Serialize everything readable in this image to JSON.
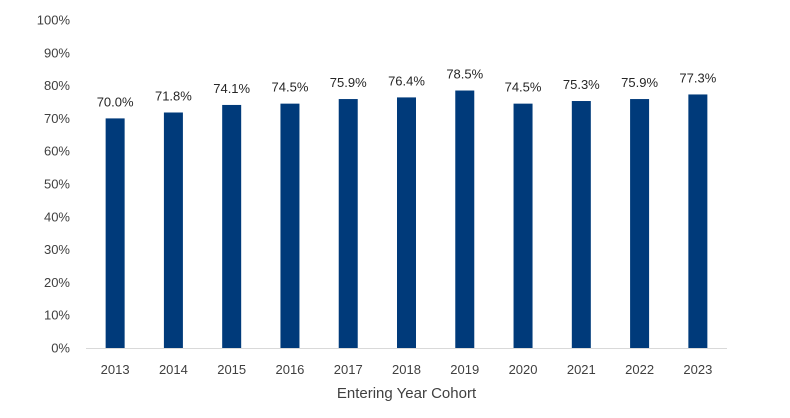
{
  "chart_data": {
    "type": "bar",
    "title": "",
    "xlabel": "Entering Year Cohort",
    "ylabel": "",
    "categories": [
      "2013",
      "2014",
      "2015",
      "2016",
      "2017",
      "2018",
      "2019",
      "2020",
      "2021",
      "2022",
      "2023"
    ],
    "values": [
      70.0,
      71.8,
      74.1,
      74.5,
      75.9,
      76.4,
      78.5,
      74.5,
      75.3,
      75.9,
      77.3
    ],
    "data_labels": [
      "70.0%",
      "71.8%",
      "74.1%",
      "74.5%",
      "75.9%",
      "76.4%",
      "78.5%",
      "74.5%",
      "75.3%",
      "75.9%",
      "77.3%"
    ],
    "ylim": [
      0,
      100
    ],
    "yticks": [
      0,
      10,
      20,
      30,
      40,
      50,
      60,
      70,
      80,
      90,
      100
    ],
    "ytick_labels": [
      "0%",
      "10%",
      "20%",
      "30%",
      "40%",
      "50%",
      "60%",
      "70%",
      "80%",
      "90%",
      "100%"
    ],
    "grid": false,
    "legend": "none",
    "bar_color": "#003A7A"
  }
}
